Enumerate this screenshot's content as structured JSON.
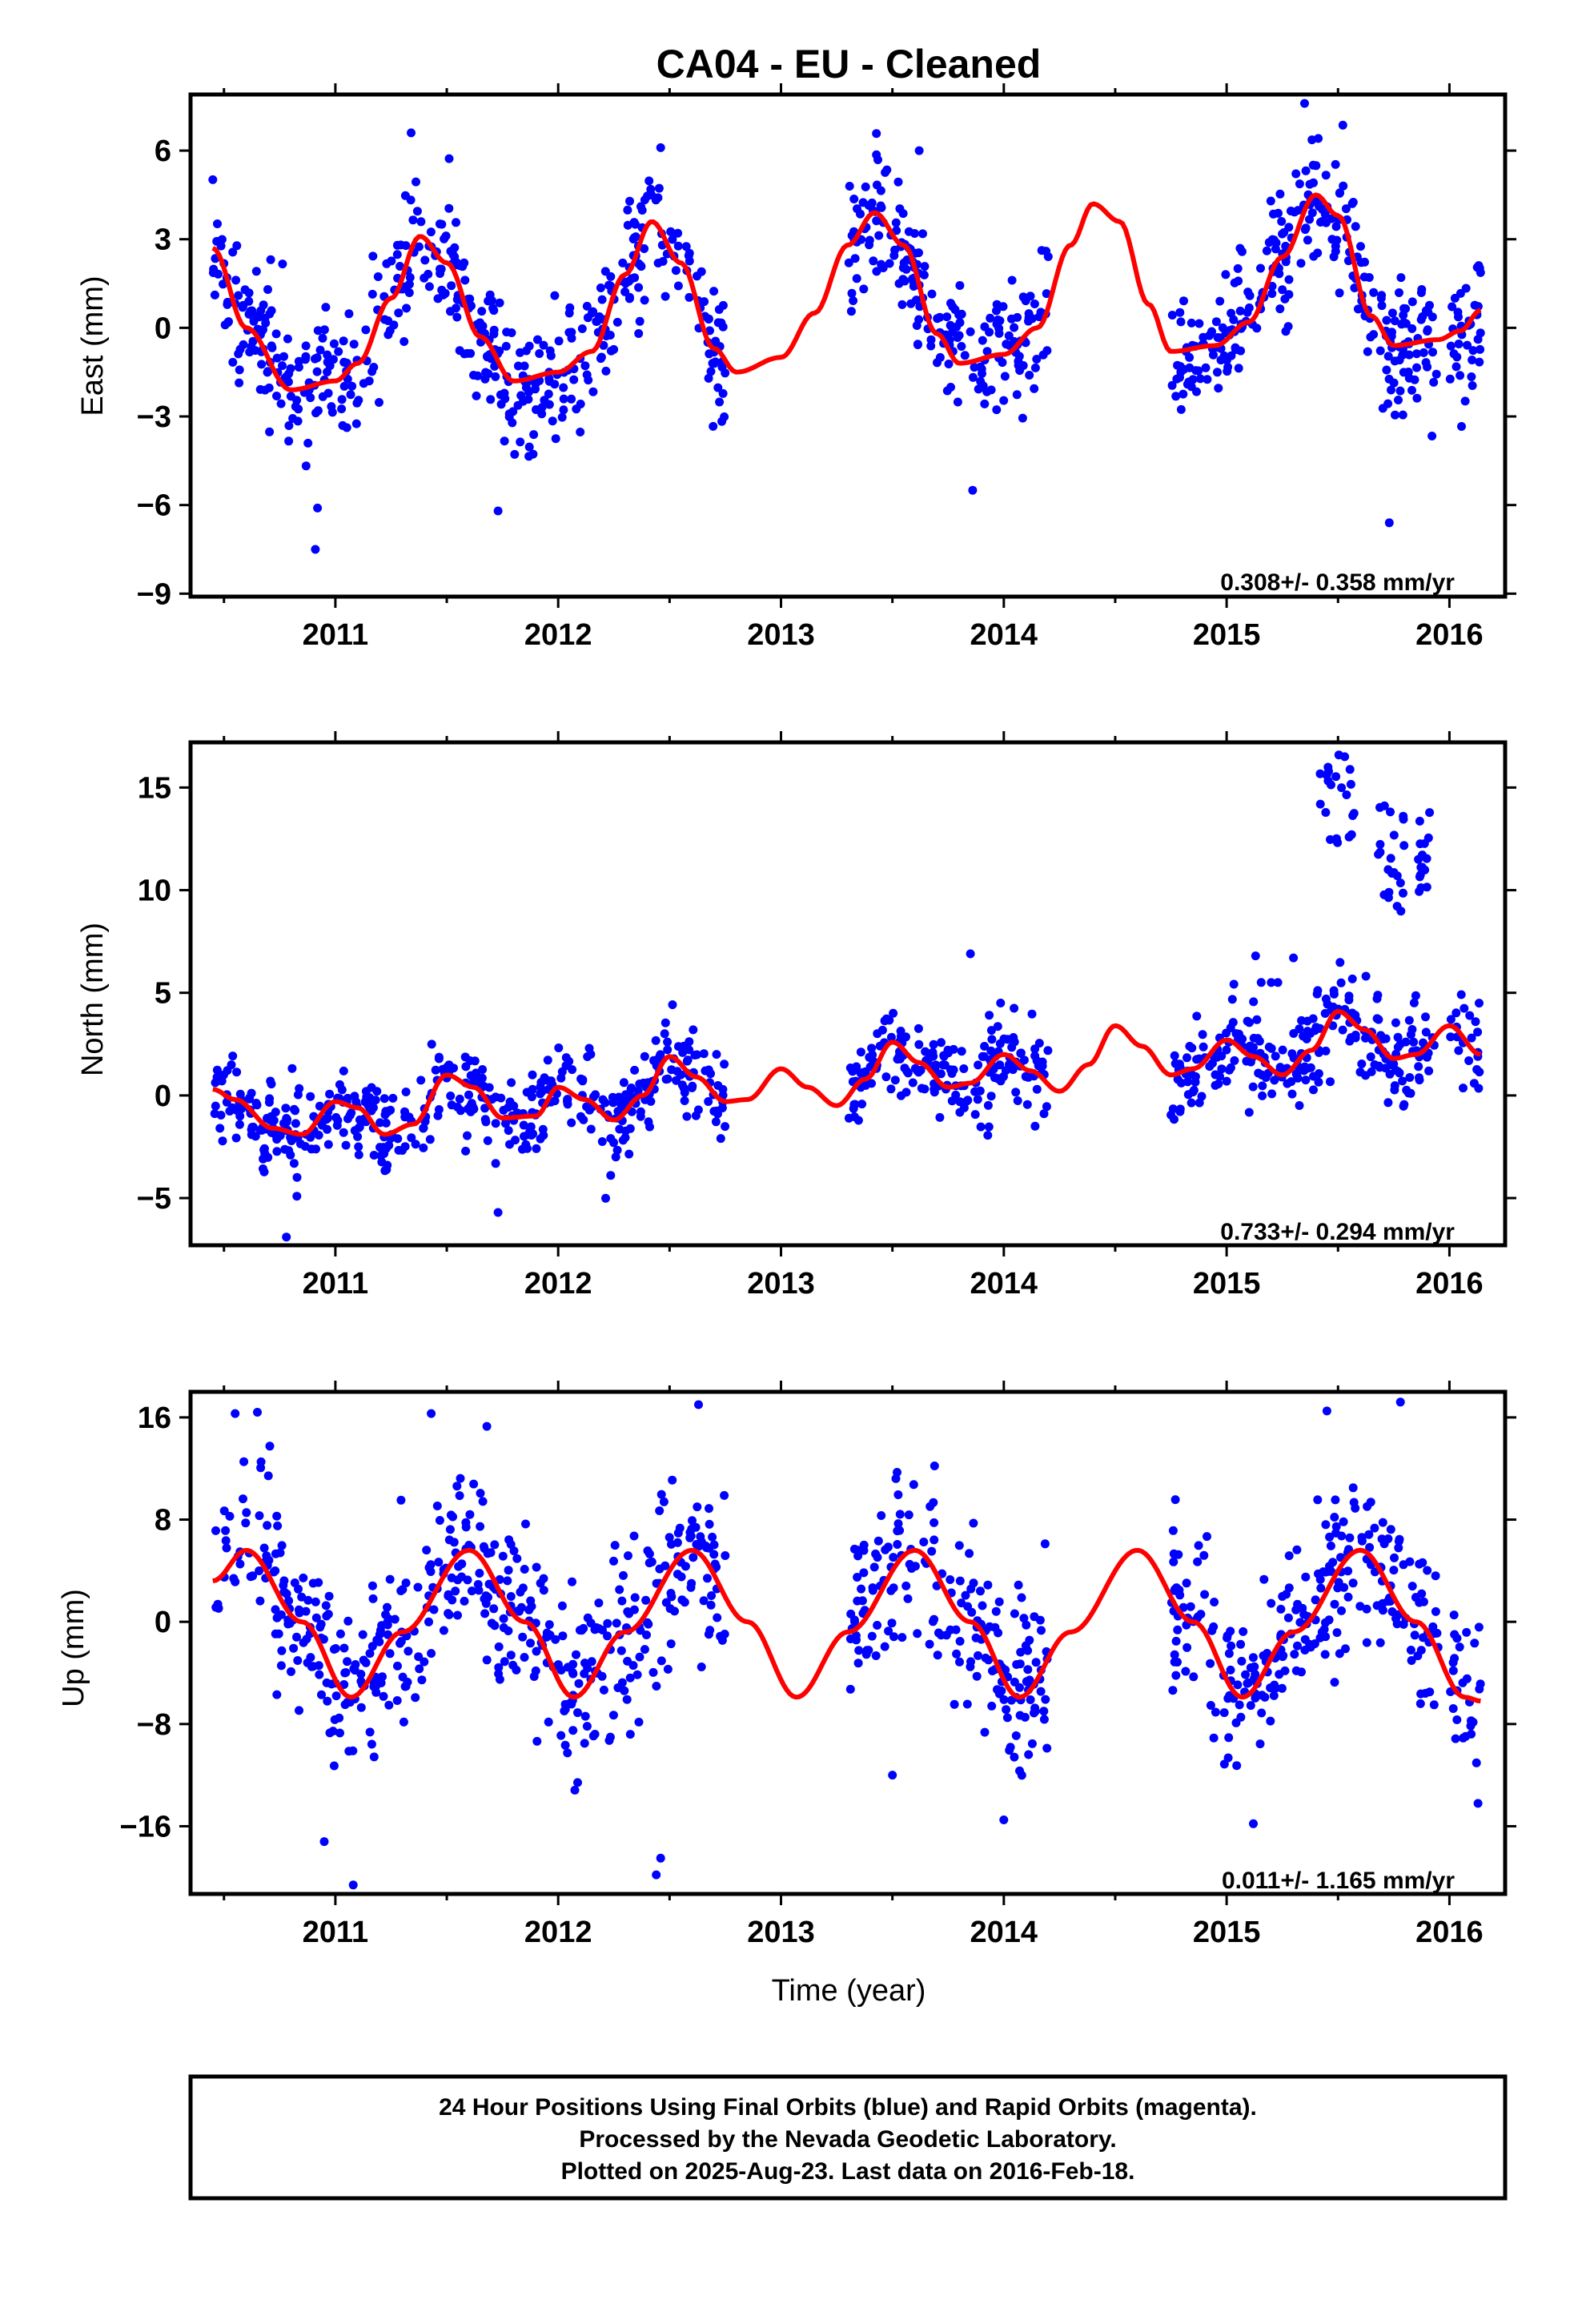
{
  "title": "CA04  - EU - Cleaned",
  "xlabel": "Time (year)",
  "footer": {
    "line1": "24 Hour Positions Using Final Orbits (blue) and Rapid Orbits (magenta).",
    "line2": "Processed by the Nevada Geodetic Laboratory.",
    "line3": "Plotted on 2025-Aug-23. Last data on 2016-Feb-18."
  },
  "colors": {
    "data": "#0000ff",
    "model": "#ff0000",
    "frame": "#000000"
  },
  "chart_data": [
    {
      "type": "scatter",
      "component": "East",
      "ylabel": "East (mm)",
      "xlim": [
        2010.35,
        2016.25
      ],
      "ylim": [
        -9.1,
        7.9
      ],
      "yticks": [
        6,
        3,
        0,
        -3,
        -6,
        -9
      ],
      "ytick_labels": [
        "6",
        "3",
        "0",
        "−3",
        "−6",
        "−9"
      ],
      "xticks": [
        2011,
        2012,
        2013,
        2014,
        2015,
        2016
      ],
      "xtick_labels": [
        "2011",
        "2012",
        "2013",
        "2014",
        "2015",
        "2016"
      ],
      "rate": "0.308+/- 0.358 mm/yr",
      "data_segments": [
        [
          2010.45,
          2012.75
        ],
        [
          2013.3,
          2014.2
        ],
        [
          2014.75,
          2015.95
        ],
        [
          2016.0,
          2016.14
        ]
      ],
      "model": {
        "x": [
          2010.45,
          2010.6,
          2010.8,
          2011.0,
          2011.1,
          2011.25,
          2011.38,
          2011.5,
          2011.65,
          2011.8,
          2012.0,
          2012.15,
          2012.3,
          2012.42,
          2012.55,
          2012.7,
          2012.8,
          2013.0,
          2013.15,
          2013.3,
          2013.42,
          2013.55,
          2013.7,
          2013.8,
          2014.0,
          2014.15,
          2014.3,
          2014.4,
          2014.52,
          2014.65,
          2014.75,
          2014.95,
          2015.1,
          2015.25,
          2015.4,
          2015.5,
          2015.65,
          2015.75,
          2015.95,
          2016.05,
          2016.14
        ],
        "y": [
          2.7,
          0.0,
          -2.1,
          -1.8,
          -1.2,
          1.0,
          3.1,
          2.2,
          -0.3,
          -1.8,
          -1.5,
          -0.8,
          1.8,
          3.6,
          2.2,
          -0.7,
          -1.5,
          -1.0,
          0.5,
          2.8,
          3.9,
          2.8,
          -0.2,
          -1.2,
          -0.9,
          0.0,
          2.8,
          4.2,
          3.6,
          0.8,
          -0.8,
          -0.6,
          0.2,
          2.4,
          4.5,
          3.8,
          0.4,
          -0.6,
          -0.4,
          -0.1,
          0.6
        ]
      },
      "scatter": {
        "count": 1000,
        "seed": 11,
        "noise": 1.15,
        "outliers": [
          [
            2010.91,
            -7.5
          ],
          [
            2011.73,
            -6.2
          ],
          [
            2015.73,
            -6.6
          ],
          [
            2015.35,
            7.6
          ],
          [
            2011.34,
            6.6
          ],
          [
            2012.46,
            6.1
          ],
          [
            2013.62,
            6.0
          ],
          [
            2013.86,
            -5.5
          ],
          [
            2010.92,
            -6.1
          ]
        ]
      }
    },
    {
      "type": "scatter",
      "component": "North",
      "ylabel": "North (mm)",
      "xlim": [
        2010.35,
        2016.25
      ],
      "ylim": [
        -7.3,
        17.2
      ],
      "yticks": [
        15,
        10,
        5,
        0,
        -5
      ],
      "ytick_labels": [
        "15",
        "10",
        "5",
        "0",
        "−5"
      ],
      "xticks": [
        2011,
        2012,
        2013,
        2014,
        2015,
        2016
      ],
      "xtick_labels": [
        "2011",
        "2012",
        "2013",
        "2014",
        "2015",
        "2016"
      ],
      "rate": "0.733+/- 0.294 mm/yr",
      "data_segments": [
        [
          2010.45,
          2012.75
        ],
        [
          2013.3,
          2014.2
        ],
        [
          2014.75,
          2015.95
        ],
        [
          2016.0,
          2016.14
        ]
      ],
      "model": {
        "x": [
          2010.45,
          2010.55,
          2010.72,
          2010.85,
          2011.0,
          2011.1,
          2011.22,
          2011.35,
          2011.5,
          2011.62,
          2011.75,
          2011.9,
          2012.0,
          2012.12,
          2012.25,
          2012.38,
          2012.5,
          2012.62,
          2012.75,
          2012.85,
          2013.0,
          2013.12,
          2013.25,
          2013.38,
          2013.5,
          2013.62,
          2013.75,
          2013.85,
          2014.0,
          2014.12,
          2014.25,
          2014.38,
          2014.5,
          2014.62,
          2014.75,
          2014.85,
          2015.0,
          2015.12,
          2015.25,
          2015.38,
          2015.5,
          2015.62,
          2015.75,
          2015.85,
          2016.0,
          2016.14
        ],
        "y": [
          0.3,
          -0.2,
          -1.6,
          -1.9,
          -0.3,
          -0.6,
          -1.9,
          -1.4,
          1.0,
          0.4,
          -1.1,
          -1.0,
          0.4,
          -0.2,
          -1.2,
          0.0,
          1.9,
          0.9,
          -0.3,
          -0.2,
          1.3,
          0.4,
          -0.5,
          0.8,
          2.6,
          1.6,
          0.4,
          0.6,
          2.0,
          1.2,
          0.2,
          1.5,
          3.4,
          2.4,
          1.0,
          1.3,
          2.7,
          1.9,
          1.0,
          2.2,
          4.1,
          3.2,
          1.8,
          2.0,
          3.4,
          2.0
        ]
      },
      "scatter": {
        "count": 900,
        "seed": 23,
        "noise": 1.1,
        "outliers": [
          [
            2010.78,
            -6.9
          ],
          [
            2011.73,
            -5.7
          ],
          [
            2013.85,
            6.9
          ],
          [
            2015.13,
            6.8
          ],
          [
            2015.3,
            6.7
          ],
          [
            2015.2,
            5.5
          ],
          [
            2015.23,
            5.5
          ]
        ],
        "clusters": [
          {
            "x": [
              2015.42,
              2015.58
            ],
            "y": [
              12.3,
              16.6
            ],
            "count": 22
          },
          {
            "x": [
              2015.68,
              2015.8
            ],
            "y": [
              8.3,
              14.9
            ],
            "count": 22
          },
          {
            "x": [
              2015.85,
              2015.93
            ],
            "y": [
              9.9,
              13.8
            ],
            "count": 16
          }
        ]
      }
    },
    {
      "type": "scatter",
      "component": "Up",
      "ylabel": "Up (mm)",
      "xlim": [
        2010.35,
        2016.25
      ],
      "ylim": [
        -21.3,
        18.0
      ],
      "yticks": [
        16,
        8,
        0,
        -8,
        -16
      ],
      "ytick_labels": [
        "16",
        "8",
        "0",
        "−8",
        "−16"
      ],
      "xticks": [
        2011,
        2012,
        2013,
        2014,
        2015,
        2016
      ],
      "xtick_labels": [
        "2011",
        "2012",
        "2013",
        "2014",
        "2015",
        "2016"
      ],
      "rate": "0.011+/- 1.165 mm/yr",
      "data_segments": [
        [
          2010.45,
          2012.75
        ],
        [
          2013.3,
          2014.2
        ],
        [
          2014.75,
          2015.95
        ],
        [
          2016.0,
          2016.14
        ]
      ],
      "model": {
        "x": [
          2010.45,
          2010.6,
          2010.85,
          2011.07,
          2011.3,
          2011.6,
          2011.85,
          2012.07,
          2012.3,
          2012.6,
          2012.85,
          2013.07,
          2013.3,
          2013.6,
          2013.85,
          2014.07,
          2014.3,
          2014.6,
          2014.85,
          2015.07,
          2015.3,
          2015.6,
          2015.85,
          2016.07,
          2016.14
        ],
        "y": [
          3.2,
          5.6,
          0.0,
          -5.9,
          -0.8,
          5.6,
          0.0,
          -5.9,
          -0.8,
          5.6,
          0.0,
          -5.9,
          -0.8,
          5.6,
          0.0,
          -5.9,
          -0.8,
          5.6,
          0.0,
          -5.9,
          -0.8,
          5.6,
          0.0,
          -5.9,
          -6.2
        ]
      },
      "scatter": {
        "count": 950,
        "seed": 37,
        "noise": 3.4,
        "outliers": [
          [
            2011.08,
            -20.6
          ],
          [
            2012.44,
            -19.8
          ],
          [
            2012.46,
            -18.5
          ],
          [
            2010.55,
            16.3
          ],
          [
            2010.65,
            16.4
          ],
          [
            2011.43,
            16.3
          ],
          [
            2012.63,
            17.0
          ],
          [
            2015.45,
            16.5
          ],
          [
            2015.78,
            17.2
          ],
          [
            2011.68,
            15.3
          ],
          [
            2010.95,
            -17.2
          ],
          [
            2014.0,
            -15.5
          ],
          [
            2015.12,
            -15.8
          ],
          [
            2013.5,
            -12.0
          ]
        ]
      }
    }
  ]
}
